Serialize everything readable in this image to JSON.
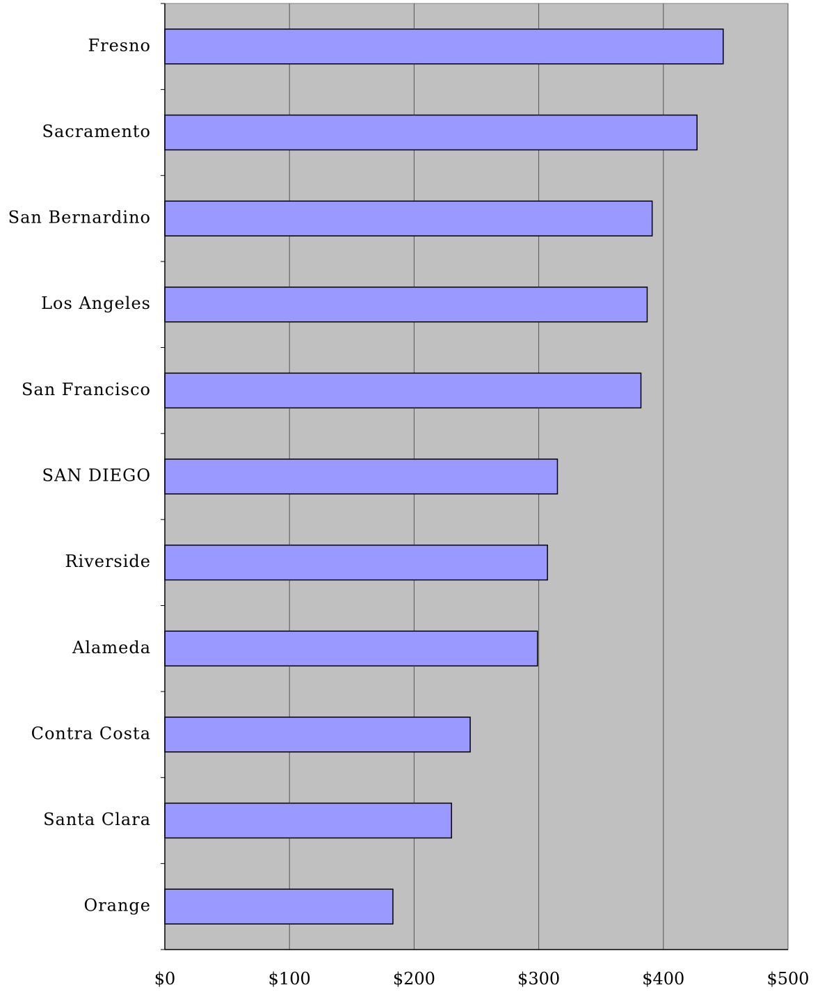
{
  "chart_data": {
    "type": "bar",
    "orientation": "horizontal",
    "categories": [
      "Fresno",
      "Sacramento",
      "San Bernardino",
      "Los Angeles",
      "San Francisco",
      "SAN DIEGO",
      "Riverside",
      "Alameda",
      "Contra Costa",
      "Santa Clara",
      "Orange"
    ],
    "values": [
      448,
      427,
      391,
      387,
      382,
      315,
      307,
      299,
      245,
      230,
      183
    ],
    "xlim": [
      0,
      500
    ],
    "x_ticks": [
      0,
      100,
      200,
      300,
      400,
      500
    ],
    "x_tick_labels": [
      "$0",
      "$100",
      "$200",
      "$300",
      "$400",
      "$500"
    ],
    "title": "",
    "xlabel": "",
    "ylabel": "",
    "grid": "vertical",
    "legend": "none",
    "colors": {
      "bar_fill": "#9999ff",
      "bar_stroke": "#000000",
      "plot_background": "#c0c0c0",
      "gridline": "#000000"
    }
  }
}
